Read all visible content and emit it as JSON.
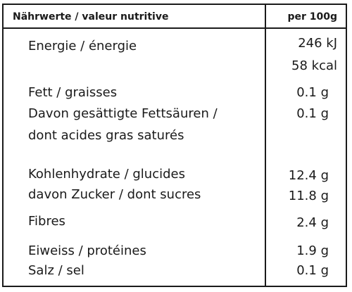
{
  "header": {
    "label": "Nährwerte / valeur nutritive",
    "unit": "per 100g"
  },
  "rows": [
    {
      "label": "Energie / énergie",
      "values": [
        "246 kJ",
        "58 kcal"
      ]
    },
    {
      "label": "Fett / graisses",
      "values": [
        "0.1 g"
      ]
    },
    {
      "label_lines": [
        "Davon gesättigte Fettsäuren /",
        "dont acides gras saturés"
      ],
      "values": [
        "0.1 g"
      ]
    },
    {
      "label": "Kohlenhydrate / glucides",
      "values": [
        "12.4 g"
      ]
    },
    {
      "label": "davon Zucker / dont sucres",
      "values": [
        "11.8 g"
      ]
    },
    {
      "label": "Fibres",
      "values": [
        "2.4 g"
      ]
    },
    {
      "label": "Eiweiss / protéines",
      "values": [
        "1.9 g"
      ]
    },
    {
      "label": "Salz / sel",
      "values": [
        "0.1 g"
      ]
    }
  ]
}
